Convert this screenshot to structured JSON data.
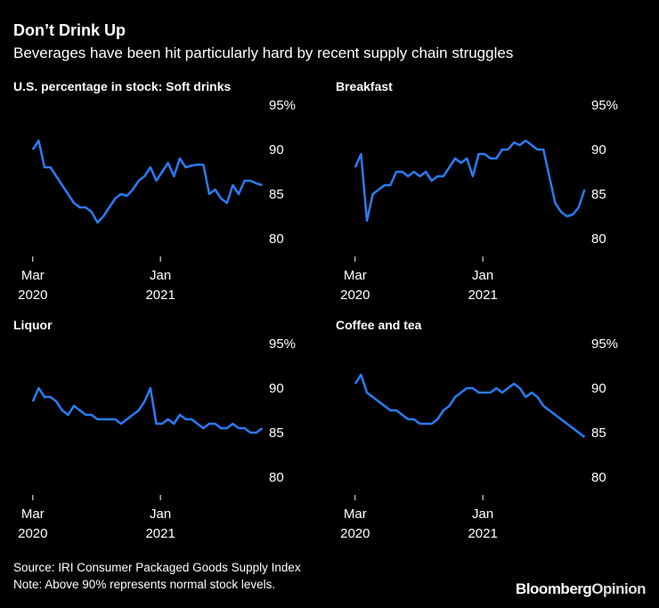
{
  "title": "Don’t Drink Up",
  "subtitle": "Beverages have been hit particularly hard by recent supply chain struggles",
  "source": "Source: IRI Consumer Packaged Goods Supply Index",
  "note": "Note: Above 90% represents normal stock levels.",
  "brand": [
    "Bloomberg",
    "Opinion"
  ],
  "chart_data": [
    {
      "type": "line",
      "title": "U.S. percentage in stock: Soft drinks",
      "color": "#2a7cf4",
      "values": [
        90,
        91,
        88,
        88,
        87,
        86,
        85,
        84,
        83.5,
        83.5,
        83,
        81.8,
        82.5,
        83.5,
        84.5,
        85,
        84.8,
        85.5,
        86.5,
        87,
        88,
        86.5,
        87.5,
        88.5,
        87,
        89,
        88,
        88.2,
        88.3,
        88.3,
        85,
        85.5,
        84.5,
        84,
        86,
        85,
        86.5,
        86.5,
        86.2,
        86
      ],
      "xlim": [
        -3.3,
        39
      ],
      "xticks": [
        {
          "value": 0,
          "label": "Mar 2020"
        },
        {
          "value": 21.7,
          "label": "Jan 2021"
        }
      ],
      "ylim": [
        78,
        95
      ],
      "yticks": [
        80,
        85,
        90,
        {
          "value": 95,
          "label": "95%"
        }
      ]
    },
    {
      "type": "line",
      "title": "Breakfast",
      "color": "#2a7cf4",
      "values": [
        88,
        89.5,
        82,
        85,
        85.5,
        86,
        86,
        87.5,
        87.5,
        87,
        87.5,
        87,
        87.5,
        86.5,
        87,
        87,
        88,
        89,
        88.5,
        89,
        87,
        89.5,
        89.5,
        89,
        89,
        90,
        90,
        90.8,
        90.5,
        91,
        90.5,
        90,
        90,
        87,
        84,
        83,
        82.5,
        82.7,
        83.5,
        85.5
      ],
      "xlim": [
        -3.3,
        39
      ],
      "xticks": [
        {
          "value": 0,
          "label": "Mar 2020"
        },
        {
          "value": 21.7,
          "label": "Jan 2021"
        }
      ],
      "ylim": [
        78,
        95
      ],
      "yticks": [
        80,
        85,
        90,
        {
          "value": 95,
          "label": "95%"
        }
      ]
    },
    {
      "type": "line",
      "title": "Liquor",
      "color": "#2a7cf4",
      "values": [
        88.5,
        90,
        89,
        89,
        88.5,
        87.5,
        87,
        88,
        87.5,
        87,
        87,
        86.5,
        86.5,
        86.5,
        86.5,
        86,
        86.5,
        87,
        87.5,
        88.5,
        90,
        86,
        86,
        86.5,
        86,
        87,
        86.5,
        86.5,
        86,
        85.5,
        86,
        86,
        85.5,
        85.5,
        86,
        85.5,
        85.5,
        85,
        85,
        85.5
      ],
      "xlim": [
        -3.3,
        39
      ],
      "xticks": [
        {
          "value": 0,
          "label": "Mar 2020"
        },
        {
          "value": 21.7,
          "label": "Jan 2021"
        }
      ],
      "ylim": [
        78,
        95
      ],
      "yticks": [
        80,
        85,
        90,
        {
          "value": 95,
          "label": "95%"
        }
      ]
    },
    {
      "type": "line",
      "title": "Coffee and tea",
      "color": "#2a7cf4",
      "values": [
        90.5,
        91.5,
        89.5,
        89,
        88.5,
        88,
        87.5,
        87.5,
        87,
        86.5,
        86.5,
        86,
        86,
        86,
        86.5,
        87.5,
        88,
        89,
        89.5,
        90,
        90,
        89.5,
        89.5,
        89.5,
        90,
        89.5,
        90,
        90.5,
        90,
        89,
        89.5,
        89,
        88,
        87.5,
        87,
        86.5,
        86,
        85.5,
        85,
        84.5
      ],
      "xlim": [
        -3.3,
        39
      ],
      "xticks": [
        {
          "value": 0,
          "label": "Mar 2020"
        },
        {
          "value": 21.7,
          "label": "Jan 2021"
        }
      ],
      "ylim": [
        78,
        95
      ],
      "yticks": [
        80,
        85,
        90,
        {
          "value": 95,
          "label": "95%"
        }
      ]
    }
  ]
}
